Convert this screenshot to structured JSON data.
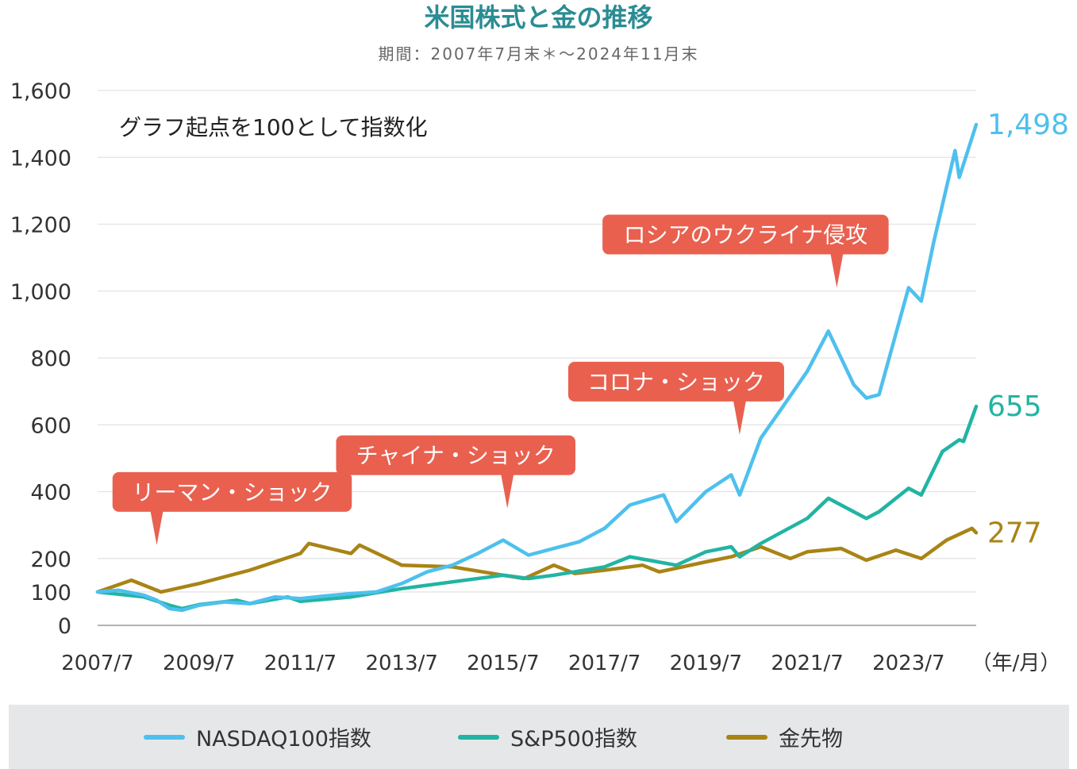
{
  "title": "米国株式と金の推移",
  "subtitle": "期間：2007年7月末＊～2024年11月末",
  "chart_data": {
    "type": "line",
    "note": "グラフ起点を100として指数化",
    "xunit": "（年/月）",
    "ylim": [
      0,
      1600
    ],
    "yticks": [
      0,
      100,
      200,
      400,
      600,
      800,
      1000,
      1200,
      1400,
      1600
    ],
    "ytick_labels": [
      "0",
      "100",
      "200",
      "400",
      "600",
      "800",
      "1,000",
      "1,200",
      "1,400",
      "1,600"
    ],
    "xticks": [
      "2007/7",
      "2009/7",
      "2011/7",
      "2013/7",
      "2015/7",
      "2017/7",
      "2019/7",
      "2021/7",
      "2023/7"
    ],
    "grid": true,
    "legend_position": "bottom",
    "series": [
      {
        "name": "NASDAQ100指数",
        "color": "#4ec0ee",
        "end_label": "1,498",
        "points": [
          [
            "2007/7",
            100
          ],
          [
            "2007/12",
            105
          ],
          [
            "2008/6",
            90
          ],
          [
            "2008/9",
            75
          ],
          [
            "2008/12",
            50
          ],
          [
            "2009/3",
            45
          ],
          [
            "2009/7",
            60
          ],
          [
            "2010/1",
            70
          ],
          [
            "2010/7",
            65
          ],
          [
            "2011/1",
            85
          ],
          [
            "2011/7",
            80
          ],
          [
            "2012/1",
            88
          ],
          [
            "2012/7",
            95
          ],
          [
            "2013/1",
            100
          ],
          [
            "2013/7",
            125
          ],
          [
            "2014/1",
            160
          ],
          [
            "2014/7",
            180
          ],
          [
            "2015/1",
            215
          ],
          [
            "2015/7",
            255
          ],
          [
            "2016/1",
            210
          ],
          [
            "2016/7",
            230
          ],
          [
            "2017/1",
            250
          ],
          [
            "2017/7",
            290
          ],
          [
            "2018/1",
            360
          ],
          [
            "2018/9",
            390
          ],
          [
            "2018/12",
            310
          ],
          [
            "2019/7",
            400
          ],
          [
            "2020/1",
            450
          ],
          [
            "2020/3",
            390
          ],
          [
            "2020/8",
            560
          ],
          [
            "2021/1",
            650
          ],
          [
            "2021/7",
            760
          ],
          [
            "2021/12",
            880
          ],
          [
            "2022/6",
            720
          ],
          [
            "2022/9",
            680
          ],
          [
            "2022/12",
            690
          ],
          [
            "2023/7",
            1010
          ],
          [
            "2023/10",
            970
          ],
          [
            "2024/1",
            1150
          ],
          [
            "2024/6",
            1420
          ],
          [
            "2024/7",
            1340
          ],
          [
            "2024/11",
            1498
          ]
        ]
      },
      {
        "name": "S&P500指数",
        "color": "#22b4a3",
        "end_label": "655",
        "points": [
          [
            "2007/7",
            100
          ],
          [
            "2008/6",
            85
          ],
          [
            "2008/12",
            60
          ],
          [
            "2009/3",
            50
          ],
          [
            "2009/7",
            62
          ],
          [
            "2010/4",
            75
          ],
          [
            "2010/7",
            65
          ],
          [
            "2011/4",
            85
          ],
          [
            "2011/7",
            72
          ],
          [
            "2012/7",
            85
          ],
          [
            "2013/7",
            110
          ],
          [
            "2014/7",
            130
          ],
          [
            "2015/7",
            150
          ],
          [
            "2016/1",
            140
          ],
          [
            "2016/7",
            150
          ],
          [
            "2017/7",
            175
          ],
          [
            "2018/1",
            205
          ],
          [
            "2018/12",
            180
          ],
          [
            "2019/7",
            220
          ],
          [
            "2020/1",
            235
          ],
          [
            "2020/3",
            205
          ],
          [
            "2020/8",
            245
          ],
          [
            "2021/7",
            320
          ],
          [
            "2021/12",
            380
          ],
          [
            "2022/9",
            320
          ],
          [
            "2022/12",
            340
          ],
          [
            "2023/7",
            410
          ],
          [
            "2023/10",
            390
          ],
          [
            "2024/3",
            520
          ],
          [
            "2024/7",
            555
          ],
          [
            "2024/8",
            550
          ],
          [
            "2024/11",
            655
          ]
        ]
      },
      {
        "name": "金先物",
        "color": "#a98415",
        "end_label": "277",
        "points": [
          [
            "2007/7",
            100
          ],
          [
            "2008/3",
            135
          ],
          [
            "2008/10",
            100
          ],
          [
            "2009/7",
            125
          ],
          [
            "2010/7",
            165
          ],
          [
            "2011/7",
            215
          ],
          [
            "2011/9",
            245
          ],
          [
            "2012/7",
            215
          ],
          [
            "2012/9",
            240
          ],
          [
            "2013/7",
            180
          ],
          [
            "2014/7",
            175
          ],
          [
            "2015/7",
            150
          ],
          [
            "2015/12",
            140
          ],
          [
            "2016/7",
            180
          ],
          [
            "2016/12",
            155
          ],
          [
            "2017/7",
            165
          ],
          [
            "2018/4",
            180
          ],
          [
            "2018/8",
            160
          ],
          [
            "2019/7",
            190
          ],
          [
            "2020/1",
            205
          ],
          [
            "2020/8",
            235
          ],
          [
            "2021/3",
            200
          ],
          [
            "2021/7",
            220
          ],
          [
            "2022/3",
            230
          ],
          [
            "2022/9",
            195
          ],
          [
            "2023/4",
            225
          ],
          [
            "2023/10",
            200
          ],
          [
            "2024/4",
            255
          ],
          [
            "2024/10",
            290
          ],
          [
            "2024/11",
            277
          ]
        ]
      }
    ],
    "annotations": [
      {
        "text": "リーマン・ショック",
        "date": "2008/9",
        "value": 240
      },
      {
        "text": "チャイナ・ショック",
        "date": "2015/8",
        "value": 350
      },
      {
        "text": "コロナ・ショック",
        "date": "2020/3",
        "value": 570
      },
      {
        "text": "ロシアのウクライナ侵攻",
        "date": "2022/2",
        "value": 1010
      }
    ]
  }
}
